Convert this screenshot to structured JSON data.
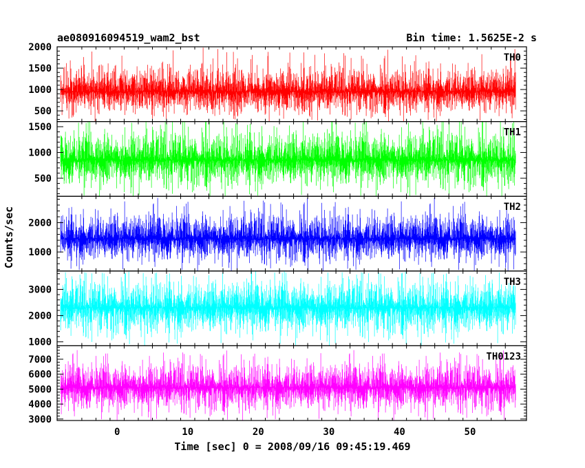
{
  "header": {
    "title": "ae080916094519_wam2_bst",
    "bin_time": "Bin time: 1.5625E-2 s"
  },
  "axes": {
    "ylabel": "Counts/sec",
    "xlabel": "Time [sec] 0 = 2008/09/16 09:45:19.469"
  },
  "chart_data": {
    "type": "line",
    "title": "ae080916094519_wam2_bst",
    "xlabel": "Time [sec] 0 = 2008/09/16 09:45:19.469",
    "ylabel": "Counts/sec",
    "xlim": [
      -8.5,
      58
    ],
    "x_ticks": [
      0,
      10,
      20,
      30,
      40,
      50
    ],
    "x_tick_labels": [
      "0",
      "10",
      "20",
      "30",
      "40",
      "50"
    ],
    "data_x_range": [
      -8,
      56.5
    ],
    "bin_time_sec": 0.015625,
    "series": [
      {
        "name": "TH0",
        "color": "#ff0000",
        "ylim": [
          250,
          2000
        ],
        "ticks": [
          500,
          1000,
          1500,
          2000
        ],
        "tick_labels": [
          "500",
          "1000",
          "1500",
          "2000"
        ],
        "mean": 950,
        "typical_min": 400,
        "typical_max": 1700,
        "peak": 2000
      },
      {
        "name": "TH1",
        "color": "#00ff00",
        "ylim": [
          150,
          1600
        ],
        "ticks": [
          500,
          1000,
          1500
        ],
        "tick_labels": [
          "500",
          "1000",
          "1500"
        ],
        "mean": 850,
        "typical_min": 300,
        "typical_max": 1600,
        "peak": 1600
      },
      {
        "name": "TH2",
        "color": "#0000ff",
        "ylim": [
          350,
          2900
        ],
        "ticks": [
          1000,
          2000
        ],
        "tick_labels": [
          "1000",
          "2000"
        ],
        "mean": 1450,
        "typical_min": 600,
        "typical_max": 2600,
        "peak": 2900
      },
      {
        "name": "TH3",
        "color": "#00ffff",
        "ylim": [
          850,
          3700
        ],
        "ticks": [
          1000,
          2000,
          3000
        ],
        "tick_labels": [
          "1000",
          "2000",
          "3000"
        ],
        "mean": 2300,
        "typical_min": 1200,
        "typical_max": 3600,
        "peak": 3700
      },
      {
        "name": "TH0123",
        "color": "#ff00ff",
        "ylim": [
          2900,
          7900
        ],
        "ticks": [
          3000,
          4000,
          5000,
          6000,
          7000
        ],
        "tick_labels": [
          "3000",
          "4000",
          "5000",
          "6000",
          "7000"
        ],
        "mean": 5100,
        "typical_min": 3400,
        "typical_max": 7200,
        "peak": 7700
      }
    ]
  }
}
